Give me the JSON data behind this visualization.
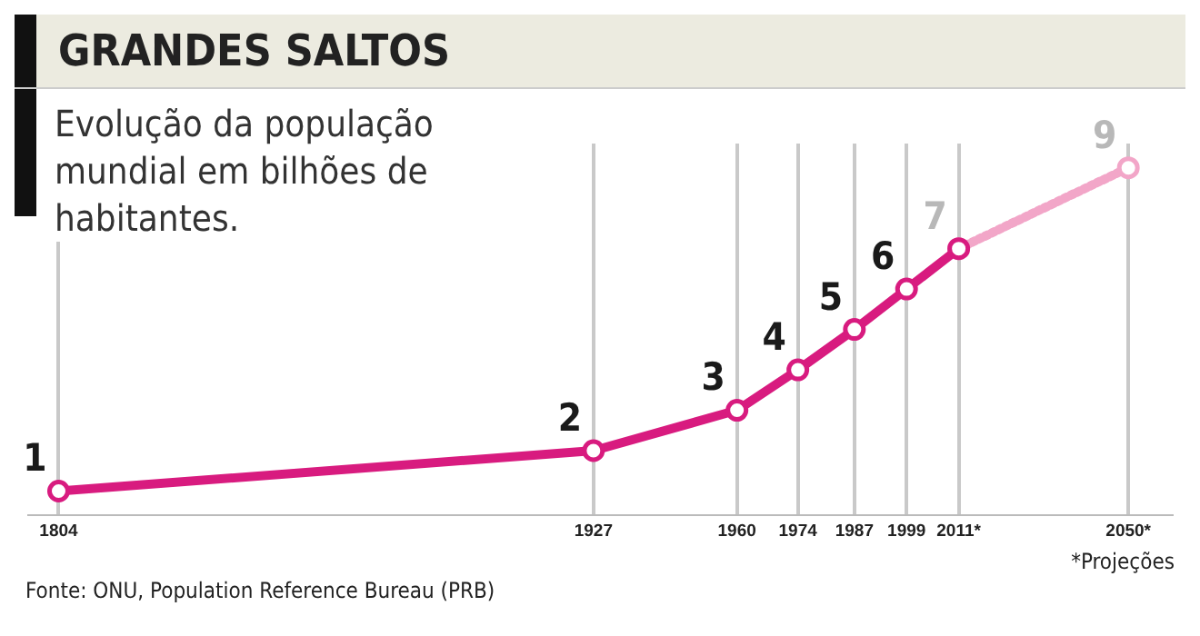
{
  "chart_data": {
    "type": "line",
    "title": "GRANDES SALTOS",
    "subtitle": "Evolução da população mundial em bilhões de habitantes.",
    "annotations": [
      "*Projeções",
      "Fonte: ONU, Population Reference Bureau (PRB)"
    ],
    "xlim": [
      1797,
      2060
    ],
    "xticks": [
      1804,
      1927,
      1960,
      1974,
      1987,
      1999,
      {
        "value": 2011,
        "label": "2011*"
      },
      {
        "value": 2050,
        "label": "2050*"
      }
    ],
    "ylim": [
      0.4,
      9.6
    ],
    "tick_labels": "x",
    "grid": "x",
    "marker": "circle",
    "legend": false,
    "series": [
      {
        "color": "#d81b7f",
        "x": [
          1804,
          1927,
          1960,
          1974,
          1987,
          1999,
          2011
        ],
        "values": [
          1,
          2,
          3,
          4,
          5,
          6,
          7
        ],
        "value_labels": [
          "1",
          "2",
          "3",
          "4",
          "5",
          "6",
          null
        ],
        "line_style": "solid"
      },
      {
        "color": "#f2a6c8",
        "x": [
          2011,
          2050
        ],
        "values": [
          7,
          9
        ],
        "value_labels": [
          "7",
          "9"
        ],
        "line_style": "dotted"
      }
    ]
  }
}
